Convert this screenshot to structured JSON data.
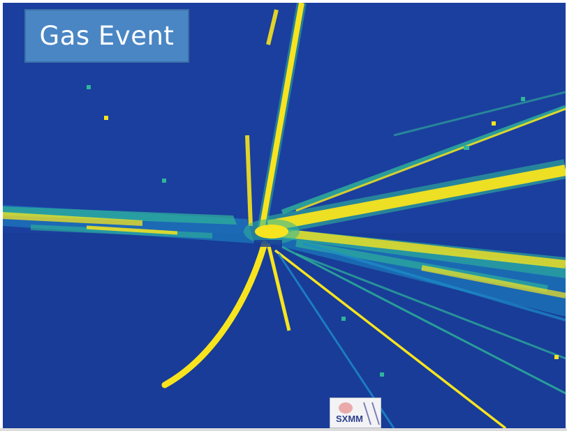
{
  "image": {
    "title": "Gas Event",
    "logo_text": "SXMM"
  },
  "colors": {
    "background_blue": "#1b3f9e",
    "background_blue_dark": "#183a94",
    "track_yellow": "#f7e41e",
    "track_green": "#2fb59a",
    "track_cyan": "#1d8dc8",
    "title_box_fill": "#4a86c4",
    "title_box_border": "#3a6fa8"
  },
  "icons": {
    "logo": "institution-logo-icon"
  }
}
